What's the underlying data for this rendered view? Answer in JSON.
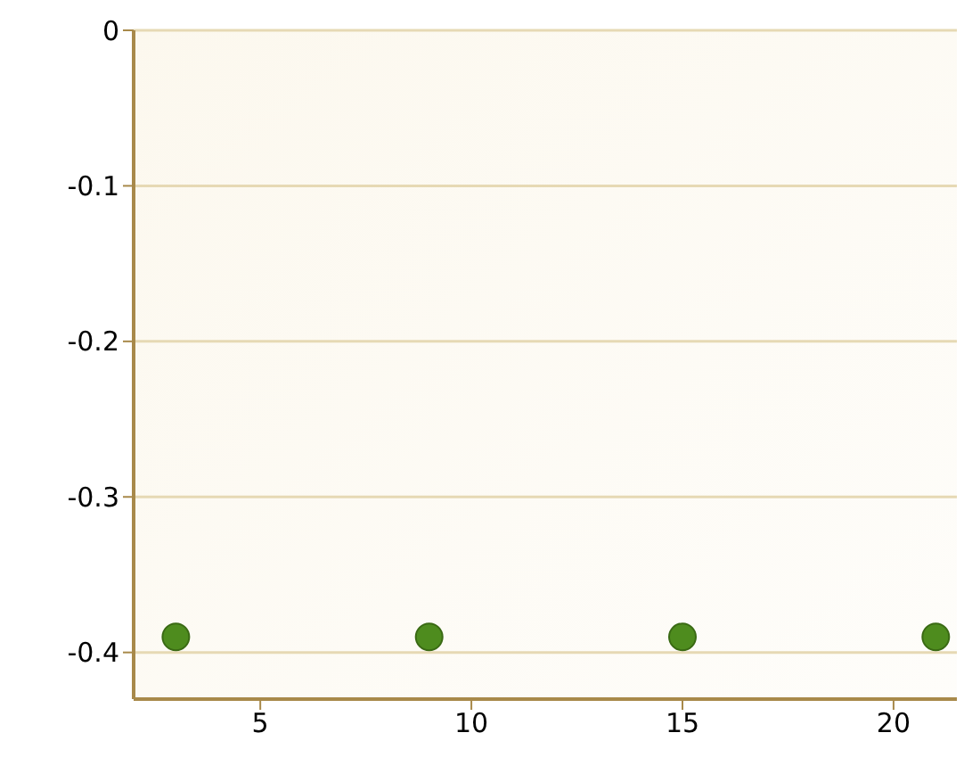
{
  "chart_data": {
    "type": "scatter",
    "x": [
      3,
      9,
      15,
      21
    ],
    "series": [
      {
        "color": "#4e8c1e",
        "values": [
          -0.39,
          -0.39,
          -0.39,
          -0.39
        ]
      }
    ],
    "xlim": [
      2,
      21.5
    ],
    "xticks": [
      5,
      10,
      15,
      20
    ],
    "ylim": [
      -0.43,
      0
    ],
    "yticks": [
      0,
      -0.1,
      -0.2,
      -0.3,
      -0.4
    ],
    "grid": "y",
    "marker": "circle",
    "legend": false
  }
}
